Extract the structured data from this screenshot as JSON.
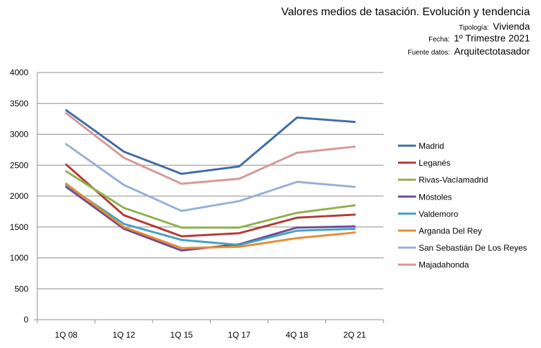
{
  "header": {
    "title": "Valores medios de tasación. Evolución y tendencia",
    "tipologia_label": "Tipología:",
    "tipologia_value": "Vivienda",
    "fecha_label": "Fecha:",
    "fecha_value": "1º Trimestre 2021",
    "fuente_label": "Fuente datos:",
    "fuente_value": "Arquitectotasador"
  },
  "chart_data": {
    "type": "line",
    "title": "Valores medios de tasación. Evolución y tendencia",
    "xlabel": "",
    "ylabel": "",
    "categories": [
      "1Q 08",
      "1Q 12",
      "1Q 15",
      "1Q 17",
      "4Q 18",
      "2Q 21"
    ],
    "ylim": [
      0,
      4000
    ],
    "yticks": [
      0,
      500,
      1000,
      1500,
      2000,
      2500,
      3000,
      3500,
      4000
    ],
    "grid": true,
    "legend_position": "right",
    "series": [
      {
        "name": "Madrid",
        "color": "#3f6ca8",
        "values": [
          3390,
          2720,
          2360,
          2480,
          3270,
          3200
        ]
      },
      {
        "name": "Leganés",
        "color": "#b23b38",
        "values": [
          2510,
          1690,
          1350,
          1400,
          1650,
          1700
        ]
      },
      {
        "name": "Rivas-Vacíamadrid",
        "color": "#8fb04a",
        "values": [
          2400,
          1810,
          1490,
          1490,
          1730,
          1850
        ]
      },
      {
        "name": "Móstoles",
        "color": "#6e4a92",
        "values": [
          2150,
          1470,
          1120,
          1220,
          1490,
          1510
        ]
      },
      {
        "name": "Valdemoro",
        "color": "#3fa3c3",
        "values": [
          2180,
          1550,
          1290,
          1210,
          1440,
          1470
        ]
      },
      {
        "name": "Arganda Del Rey",
        "color": "#eb8a33",
        "values": [
          2200,
          1500,
          1160,
          1180,
          1320,
          1410
        ]
      },
      {
        "name": "San Sebastián De Los Reyes",
        "color": "#94b0d8",
        "values": [
          2840,
          2180,
          1760,
          1920,
          2230,
          2150
        ]
      },
      {
        "name": "Majadahonda",
        "color": "#d69896",
        "values": [
          3340,
          2620,
          2200,
          2280,
          2700,
          2800
        ]
      }
    ]
  }
}
